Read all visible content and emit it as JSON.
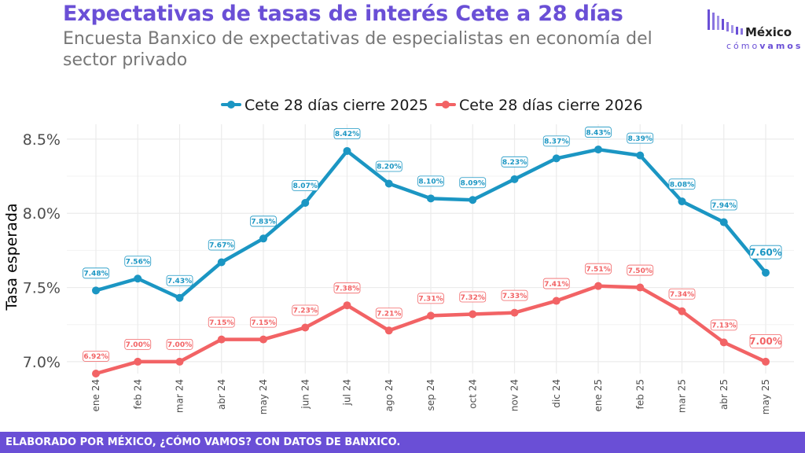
{
  "header": {
    "title": "Expectativas de tasas de interés Cete a 28 días",
    "subtitle": "Encuesta Banxico de expectativas de especialistas en economía del sector privado"
  },
  "logo": {
    "line1": "México",
    "line2_a": "cómo",
    "line2_b": "vamos"
  },
  "footer": {
    "text": "ELABORADO POR MÉXICO, ¿CÓMO VAMOS? CON DATOS DE BANXICO."
  },
  "colors": {
    "brand": "#6a4fd6",
    "series_2025": "#1b96c3",
    "series_2026": "#f26365",
    "grid": "#ebebeb"
  },
  "chart_data": {
    "type": "line",
    "title": "",
    "xlabel": "",
    "ylabel": "Tasa esperada",
    "legend_position": "top",
    "grid": true,
    "categories": [
      "ene 24",
      "feb 24",
      "mar 24",
      "abr 24",
      "may 24",
      "jun 24",
      "jul 24",
      "ago 24",
      "sep 24",
      "oct 24",
      "nov 24",
      "dic 24",
      "ene 25",
      "feb 25",
      "mar 25",
      "abr 25",
      "may 25"
    ],
    "y_ticks": [
      7.0,
      7.5,
      8.0,
      8.5
    ],
    "y_tick_labels": [
      "7.0%",
      "7.5%",
      "8.0%",
      "8.5%"
    ],
    "ylim": [
      6.92,
      8.6
    ],
    "series": [
      {
        "name": "Cete 28 días cierre 2025",
        "color": "#1b96c3",
        "values": [
          7.48,
          7.56,
          7.43,
          7.67,
          7.83,
          8.07,
          8.42,
          8.2,
          8.1,
          8.09,
          8.23,
          8.37,
          8.43,
          8.39,
          8.08,
          7.94,
          7.6
        ],
        "labels": [
          "7.48%",
          "7.56%",
          "7.43%",
          "7.67%",
          "7.83%",
          "8.07%",
          "8.42%",
          "8.20%",
          "8.10%",
          "8.09%",
          "8.23%",
          "8.37%",
          "8.43%",
          "8.39%",
          "8.08%",
          "7.94%",
          "7.60%"
        ]
      },
      {
        "name": "Cete 28 días cierre 2026",
        "color": "#f26365",
        "values": [
          6.92,
          7.0,
          7.0,
          7.15,
          7.15,
          7.23,
          7.38,
          7.21,
          7.31,
          7.32,
          7.33,
          7.41,
          7.51,
          7.5,
          7.34,
          7.13,
          7.0
        ],
        "labels": [
          "6.92%",
          "7.00%",
          "7.00%",
          "7.15%",
          "7.15%",
          "7.23%",
          "7.38%",
          "7.21%",
          "7.31%",
          "7.32%",
          "7.33%",
          "7.41%",
          "7.51%",
          "7.50%",
          "7.34%",
          "7.13%",
          "7.00%"
        ]
      }
    ]
  }
}
